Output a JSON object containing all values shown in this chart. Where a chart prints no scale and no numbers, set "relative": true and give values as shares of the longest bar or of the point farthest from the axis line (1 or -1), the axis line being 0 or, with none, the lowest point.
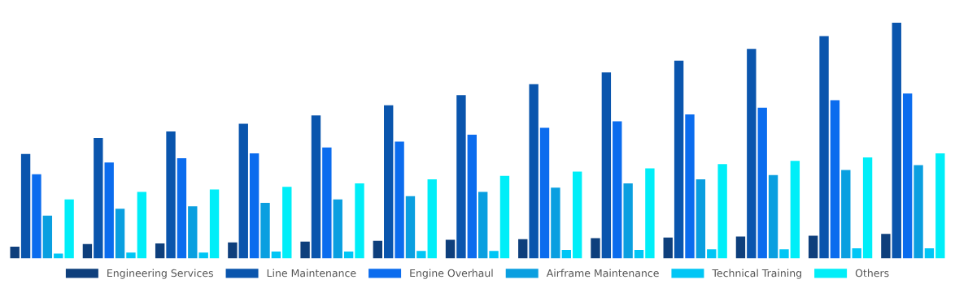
{
  "chart_data": {
    "type": "bar",
    "relative": true,
    "legend": "bottom",
    "grid": false,
    "categories": [
      null,
      null,
      null,
      null,
      null,
      null,
      null,
      null,
      null,
      null,
      null,
      null,
      null
    ],
    "series": [
      {
        "name": "Engineering Services",
        "color": "#0e3f7c",
        "values": [
          0.05,
          0.061,
          0.064,
          0.068,
          0.071,
          0.075,
          0.079,
          0.082,
          0.086,
          0.089,
          0.093,
          0.096,
          0.104
        ]
      },
      {
        "name": "Line Maintenance",
        "color": "#0a55ad",
        "values": [
          0.443,
          0.511,
          0.539,
          0.571,
          0.607,
          0.65,
          0.693,
          0.739,
          0.789,
          0.839,
          0.889,
          0.943,
          1
        ]
      },
      {
        "name": "Engine Overhaul",
        "color": "#0b6cee",
        "values": [
          0.357,
          0.407,
          0.425,
          0.446,
          0.471,
          0.496,
          0.525,
          0.554,
          0.582,
          0.611,
          0.639,
          0.671,
          0.7
        ]
      },
      {
        "name": "Airframe Maintenance",
        "color": "#0a9fe0",
        "values": [
          0.182,
          0.211,
          0.221,
          0.236,
          0.25,
          0.264,
          0.282,
          0.3,
          0.318,
          0.336,
          0.354,
          0.375,
          0.396
        ]
      },
      {
        "name": "Technical Training",
        "color": "#00c6f5",
        "values": [
          0.021,
          0.025,
          0.025,
          0.029,
          0.029,
          0.032,
          0.032,
          0.036,
          0.036,
          0.039,
          0.039,
          0.043,
          0.043
        ]
      },
      {
        "name": "Others",
        "color": "#00eef8",
        "values": [
          0.25,
          0.282,
          0.293,
          0.304,
          0.318,
          0.336,
          0.35,
          0.368,
          0.382,
          0.4,
          0.414,
          0.429,
          0.446
        ]
      }
    ]
  }
}
